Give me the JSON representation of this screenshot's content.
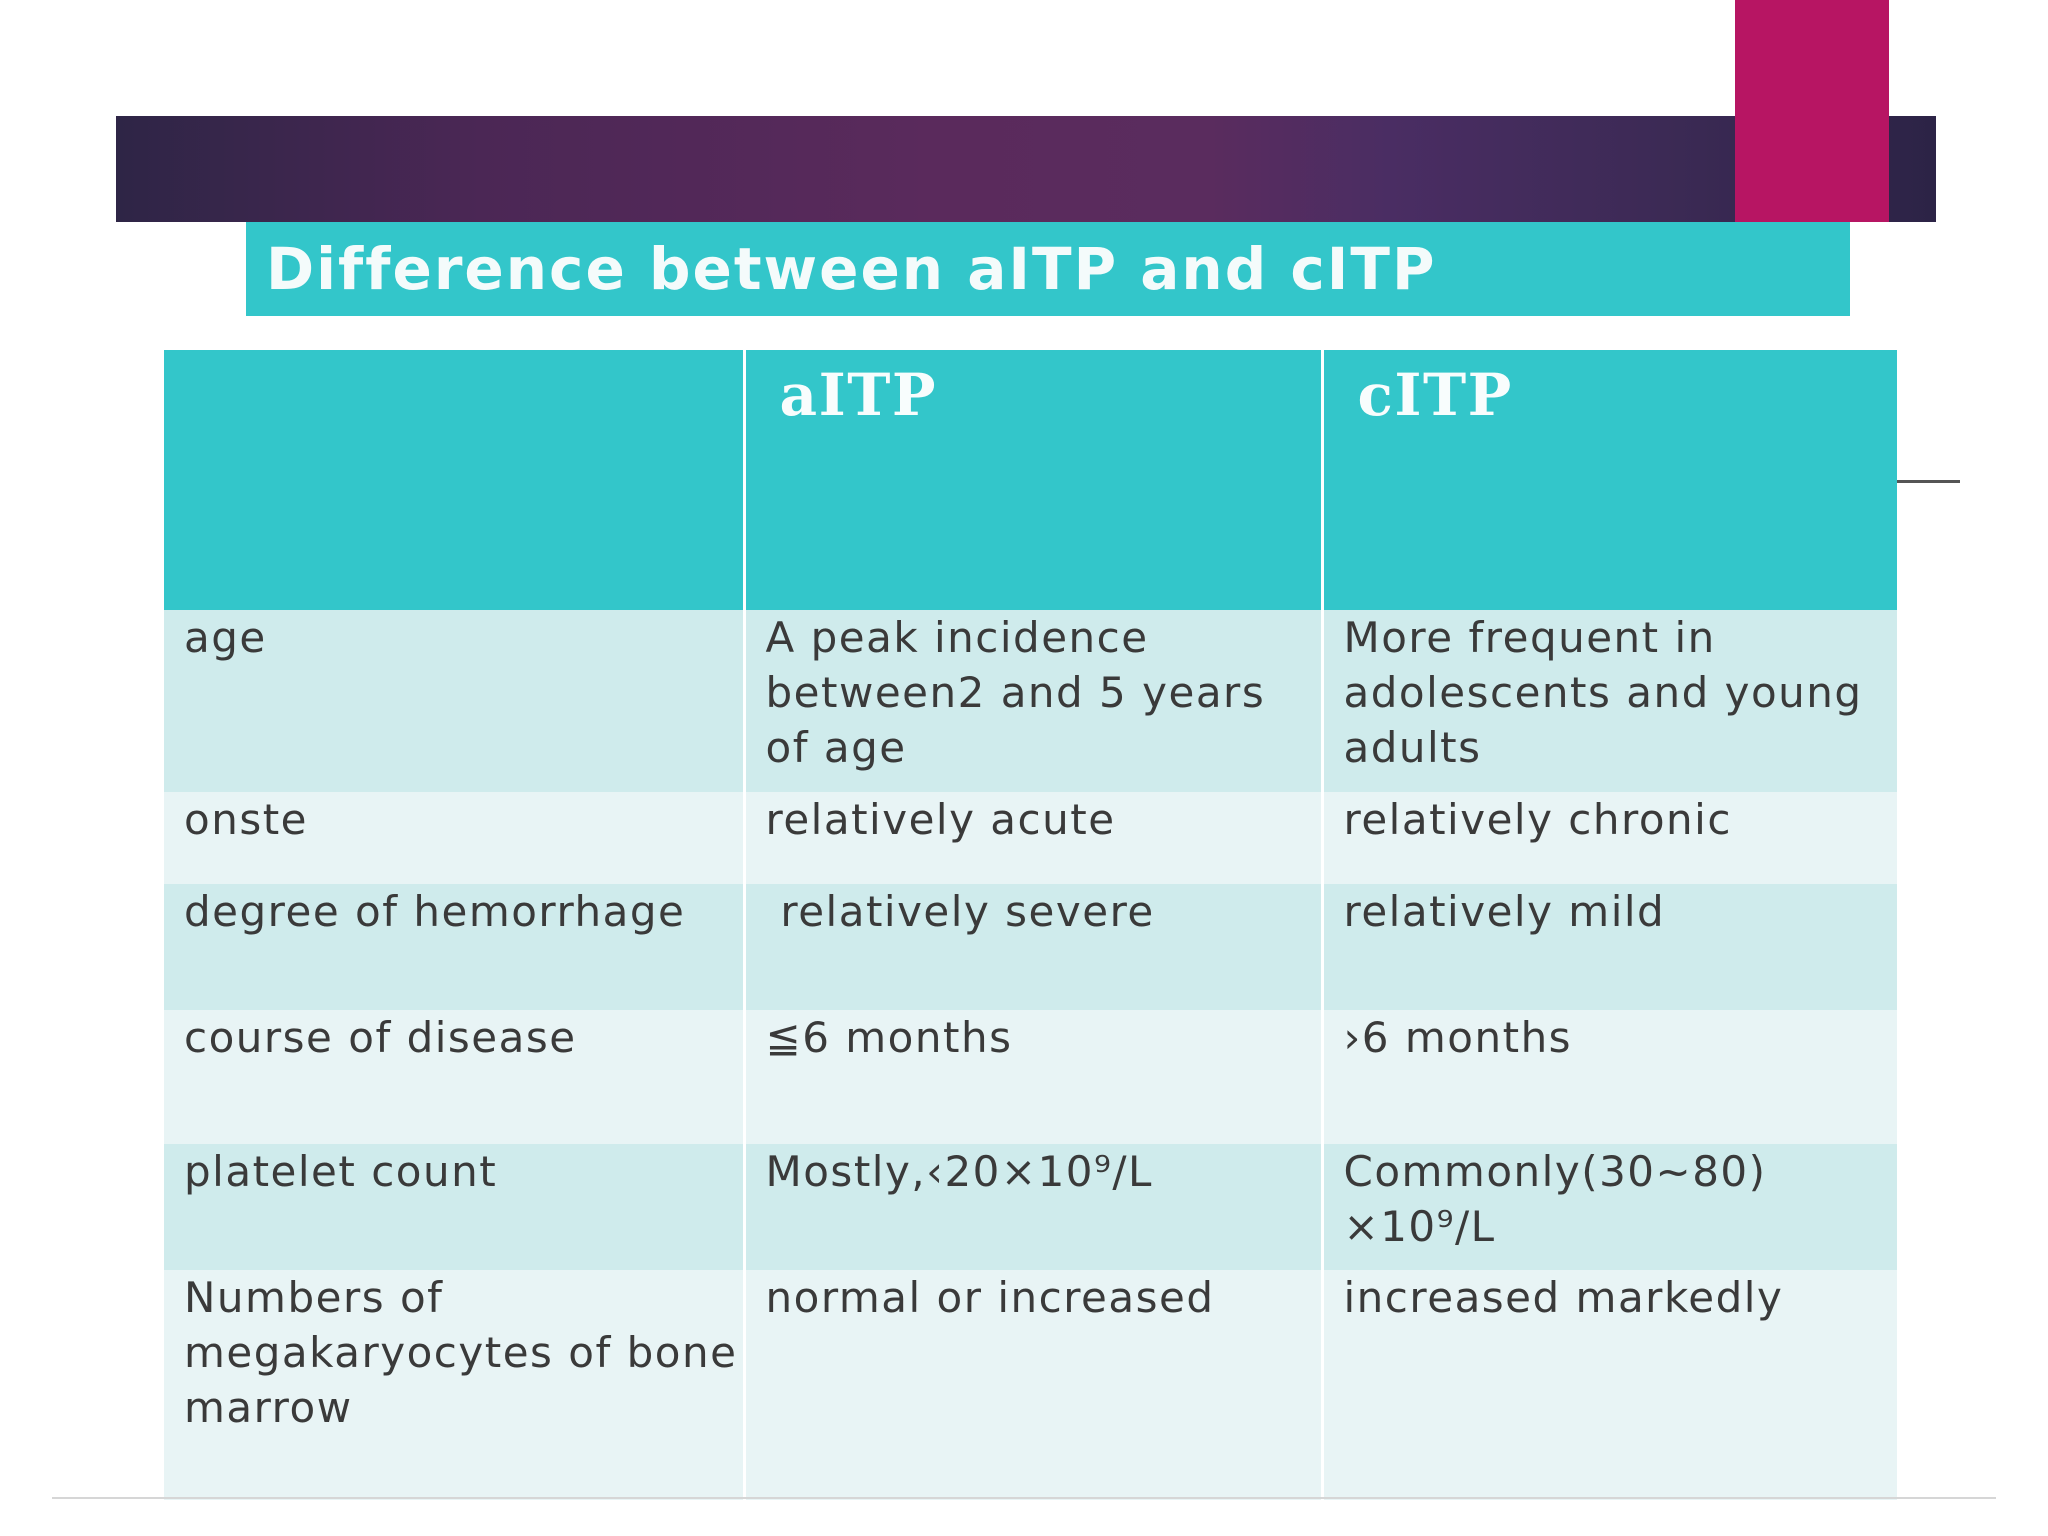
{
  "slide": {
    "title": "Difference between aITP and cITP"
  },
  "table": {
    "headers": [
      "",
      "aITP",
      "cITP"
    ],
    "rows": [
      {
        "label": "age",
        "aitp": "A peak incidence between2 and 5 years of age",
        "citp": "More frequent in adolescents and young adults"
      },
      {
        "label": "onste",
        "aitp": "relatively acute",
        "citp": "relatively  chronic"
      },
      {
        "label": "degree of hemorrhage",
        "aitp": " relatively severe",
        "citp": "relatively mild"
      },
      {
        "label": "course of disease",
        "aitp": "≦6 months",
        "citp": "›6 months"
      },
      {
        "label": "platelet count",
        "aitp": "Mostly,‹20×10⁹/L",
        "citp": "Commonly(30~80) ×10⁹/L"
      },
      {
        "label": "Numbers of megakaryocytes of bone marrow",
        "aitp": "normal or increased",
        "citp": "increased markedly"
      }
    ]
  },
  "colors": {
    "banner": "#4b2755",
    "accent": "#b71563",
    "teal": "#33c6ca",
    "row_dark": "#cfebec",
    "row_light": "#e8f4f5"
  }
}
